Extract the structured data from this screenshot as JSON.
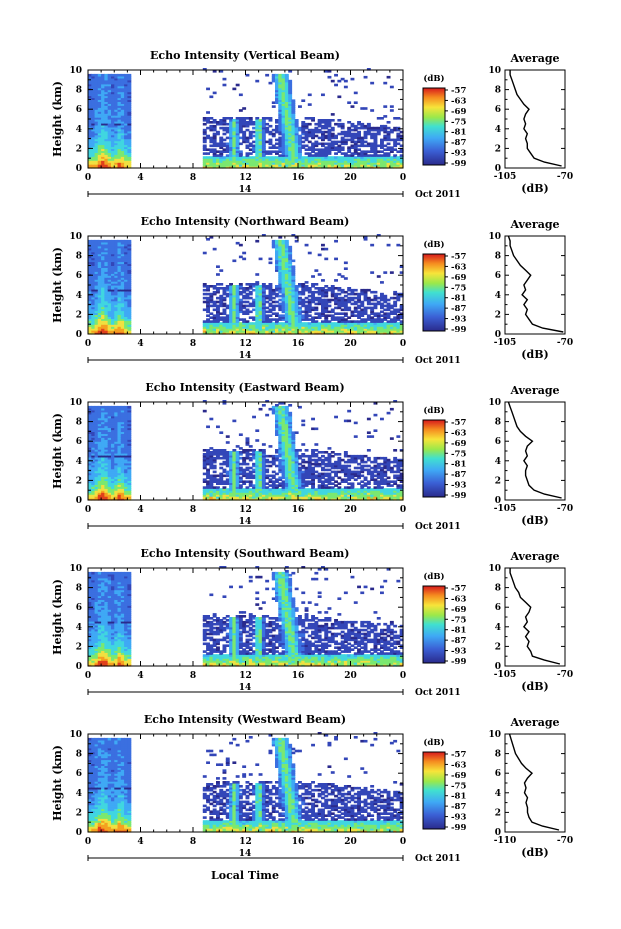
{
  "figure": {
    "xlabel": "Local Time",
    "date_label": "Oct 2011",
    "day_label": "14"
  },
  "chart_data": [
    {
      "type": "heatmap",
      "title": "Echo Intensity (Vertical Beam)",
      "ylabel": "Height (km)",
      "xlim": [
        0,
        24
      ],
      "ylim": [
        0,
        10
      ],
      "xticks": [
        "0",
        "4",
        "8",
        "12",
        "16",
        "20",
        "0"
      ],
      "yticks": [
        "0",
        "2",
        "4",
        "6",
        "8",
        "10"
      ],
      "colorbar": {
        "label": "(dB)",
        "ticks": [
          "-57",
          "-63",
          "-69",
          "-75",
          "-81",
          "-87",
          "-93",
          "-99"
        ]
      },
      "average": {
        "title": "Average",
        "xlabel": "(dB)",
        "xlim": [
          -105,
          -70
        ],
        "xticks": [
          "-105",
          "-70"
        ],
        "yticks": [
          "0",
          "2",
          "4",
          "6",
          "8",
          "10"
        ],
        "height": [
          0.2,
          0.6,
          1.0,
          1.5,
          2.0,
          2.5,
          3.0,
          3.5,
          4.0,
          4.5,
          5.0,
          5.5,
          6.0,
          6.5,
          7.0,
          7.5,
          8.0,
          8.5,
          9.0,
          9.5,
          10.0
        ],
        "db": [
          -72,
          -82,
          -88,
          -90,
          -92,
          -92,
          -93,
          -92,
          -94,
          -93,
          -94,
          -93,
          -91,
          -94,
          -96,
          -98,
          -99,
          -100,
          -101,
          -102,
          -102
        ]
      }
    },
    {
      "type": "heatmap",
      "title": "Echo Intensity (Northward Beam)",
      "ylabel": "Height (km)",
      "xlim": [
        0,
        24
      ],
      "ylim": [
        0,
        10
      ],
      "xticks": [
        "0",
        "4",
        "8",
        "12",
        "16",
        "20",
        "0"
      ],
      "yticks": [
        "0",
        "2",
        "4",
        "6",
        "8",
        "10"
      ],
      "colorbar": {
        "label": "(dB)",
        "ticks": [
          "-57",
          "-63",
          "-69",
          "-75",
          "-81",
          "-87",
          "-93",
          "-99"
        ]
      },
      "average": {
        "title": "Average",
        "xlabel": "(dB)",
        "xlim": [
          -105,
          -70
        ],
        "xticks": [
          "-105",
          "-70"
        ],
        "yticks": [
          "0",
          "2",
          "4",
          "6",
          "8",
          "10"
        ],
        "height": [
          0.2,
          0.6,
          1.0,
          1.5,
          2.0,
          2.5,
          3.0,
          3.5,
          4.0,
          4.5,
          5.0,
          5.5,
          6.0,
          6.5,
          7.0,
          7.5,
          8.0,
          8.5,
          9.0,
          9.5,
          10.0
        ],
        "db": [
          -71,
          -83,
          -89,
          -91,
          -93,
          -92,
          -94,
          -92,
          -95,
          -93,
          -94,
          -92,
          -90,
          -93,
          -96,
          -98,
          -100,
          -101,
          -102,
          -102,
          -103
        ]
      }
    },
    {
      "type": "heatmap",
      "title": "Echo Intensity (Eastward Beam)",
      "ylabel": "Height (km)",
      "xlim": [
        0,
        24
      ],
      "ylim": [
        0,
        10
      ],
      "xticks": [
        "0",
        "4",
        "8",
        "12",
        "16",
        "20",
        "0"
      ],
      "yticks": [
        "0",
        "2",
        "4",
        "6",
        "8",
        "10"
      ],
      "colorbar": {
        "label": "(dB)",
        "ticks": [
          "-57",
          "-63",
          "-69",
          "-75",
          "-81",
          "-87",
          "-93",
          "-99"
        ]
      },
      "average": {
        "title": "Average",
        "xlabel": "(dB)",
        "xlim": [
          -105,
          -70
        ],
        "xticks": [
          "-105",
          "-70"
        ],
        "yticks": [
          "0",
          "2",
          "4",
          "6",
          "8",
          "10"
        ],
        "height": [
          0.2,
          0.6,
          1.0,
          1.5,
          2.0,
          2.5,
          3.0,
          3.5,
          4.0,
          4.5,
          5.0,
          5.5,
          6.0,
          6.5,
          7.0,
          7.5,
          8.0,
          8.5,
          9.0,
          9.5,
          10.0
        ],
        "db": [
          -72,
          -82,
          -88,
          -91,
          -92,
          -93,
          -93,
          -92,
          -94,
          -92,
          -93,
          -92,
          -89,
          -93,
          -96,
          -98,
          -99,
          -100,
          -101,
          -102,
          -103
        ]
      }
    },
    {
      "type": "heatmap",
      "title": "Echo Intensity (Southward Beam)",
      "ylabel": "Height (km)",
      "xlim": [
        0,
        24
      ],
      "ylim": [
        0,
        10
      ],
      "xticks": [
        "0",
        "4",
        "8",
        "12",
        "16",
        "20",
        "0"
      ],
      "yticks": [
        "0",
        "2",
        "4",
        "6",
        "8",
        "10"
      ],
      "colorbar": {
        "label": "(dB)",
        "ticks": [
          "-57",
          "-63",
          "-69",
          "-75",
          "-81",
          "-87",
          "-93",
          "-99"
        ]
      },
      "average": {
        "title": "Average",
        "xlabel": "(dB)",
        "xlim": [
          -105,
          -70
        ],
        "xticks": [
          "-105",
          "-70"
        ],
        "yticks": [
          "0",
          "2",
          "4",
          "6",
          "8",
          "10"
        ],
        "height": [
          0.2,
          0.6,
          1.0,
          1.5,
          2.0,
          2.5,
          3.0,
          3.5,
          4.0,
          4.5,
          5.0,
          5.5,
          6.0,
          6.5,
          7.0,
          7.5,
          8.0,
          8.5,
          9.0,
          9.5,
          10.0
        ],
        "db": [
          -73,
          -82,
          -89,
          -90,
          -92,
          -91,
          -93,
          -91,
          -94,
          -92,
          -93,
          -91,
          -90,
          -93,
          -96,
          -97,
          -99,
          -100,
          -101,
          -102,
          -102
        ]
      }
    },
    {
      "type": "heatmap",
      "title": "Echo Intensity (Westward Beam)",
      "ylabel": "Height (km)",
      "xlim": [
        0,
        24
      ],
      "ylim": [
        0,
        10
      ],
      "xticks": [
        "0",
        "4",
        "8",
        "12",
        "16",
        "20",
        "0"
      ],
      "yticks": [
        "0",
        "2",
        "4",
        "6",
        "8",
        "10"
      ],
      "colorbar": {
        "label": "(dB)",
        "ticks": [
          "-57",
          "-63",
          "-69",
          "-75",
          "-81",
          "-87",
          "-93",
          "-99"
        ]
      },
      "average": {
        "title": "Average",
        "xlabel": "(dB)",
        "xlim": [
          -110,
          -70
        ],
        "xticks": [
          "-110",
          "-70"
        ],
        "yticks": [
          "0",
          "2",
          "4",
          "6",
          "8",
          "10"
        ],
        "height": [
          0.2,
          0.6,
          1.0,
          1.5,
          2.0,
          2.5,
          3.0,
          3.5,
          4.0,
          4.5,
          5.0,
          5.5,
          6.0,
          6.5,
          7.0,
          7.5,
          8.0,
          8.5,
          9.0,
          9.5,
          10.0
        ],
        "db": [
          -74,
          -85,
          -92,
          -94,
          -95,
          -95,
          -96,
          -95,
          -97,
          -96,
          -97,
          -95,
          -92,
          -96,
          -99,
          -101,
          -103,
          -104,
          -105,
          -106,
          -107
        ]
      }
    }
  ]
}
